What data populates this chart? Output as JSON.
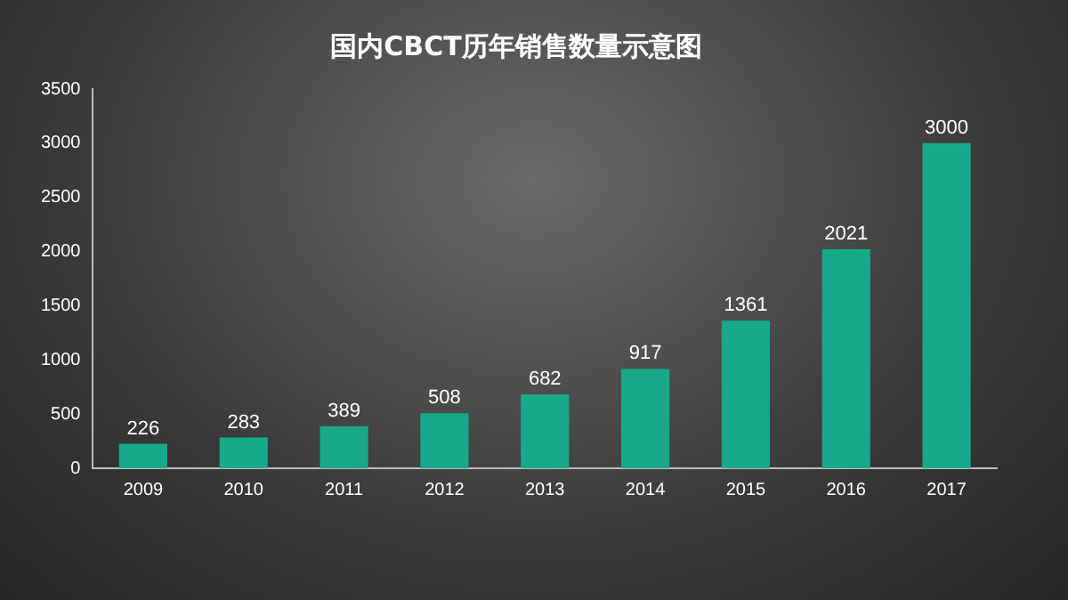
{
  "chart_data": {
    "type": "bar",
    "title": "国内CBCT历年销售数量示意图",
    "categories": [
      "2009",
      "2010",
      "2011",
      "2012",
      "2013",
      "2014",
      "2015",
      "2016",
      "2017"
    ],
    "values": [
      226,
      283,
      389,
      508,
      682,
      917,
      1361,
      2021,
      3000
    ],
    "color": "#17a98a",
    "ylim": [
      0,
      3500
    ],
    "yticks": [
      0,
      500,
      1000,
      1500,
      2000,
      2500,
      3000,
      3500
    ],
    "data_labels": true,
    "grid": false,
    "legend": false
  }
}
